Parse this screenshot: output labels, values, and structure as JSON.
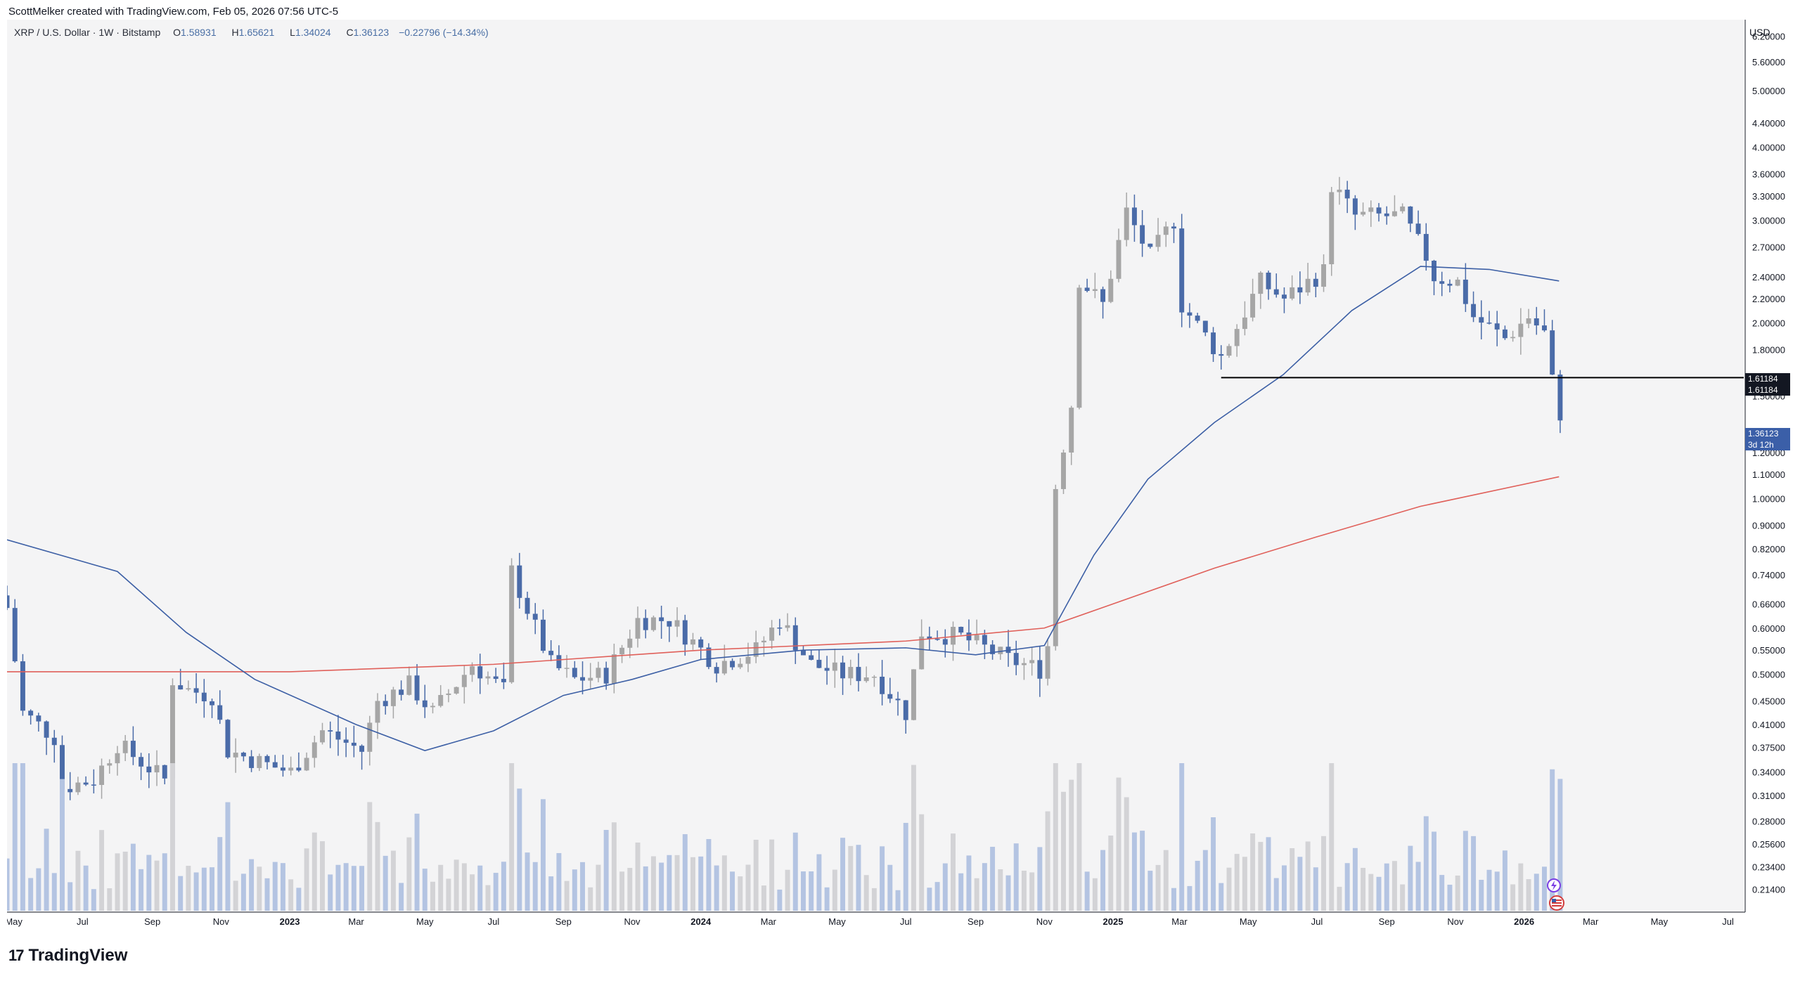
{
  "credit": "ScottMelker created with TradingView.com, Feb 05, 2026 07:56 UTC-5",
  "legend": {
    "symbol": "XRP / U.S. Dollar · 1W · Bitstamp",
    "open_label": "O",
    "open": "1.58931",
    "high_label": "H",
    "high": "1.65621",
    "low_label": "L",
    "low": "1.34024",
    "close_label": "C",
    "close": "1.36123",
    "change": "−0.22796 (−14.34%)"
  },
  "currency": "USD",
  "price_tags": {
    "support_1": "1.61184",
    "support_2": "1.61184",
    "last_price": "1.36123",
    "countdown": "3d 12h"
  },
  "brand": "TradingView",
  "colors": {
    "background": "#f4f4f5",
    "up_candle": "#a6a6a6",
    "down_candle": "#4a6ba8",
    "ma_short": "#3c5fa5",
    "ma_long": "#e0605a",
    "support_line": "#000000",
    "volume_up": "#d3d3d6",
    "volume_down": "#b4c4e2"
  },
  "chart_data": {
    "type": "candlestick",
    "scale": "log",
    "ylim": [
      0.2,
      6.4
    ],
    "y_ticks": [
      "6.20000",
      "5.60000",
      "5.00000",
      "4.40000",
      "4.00000",
      "3.60000",
      "3.30000",
      "3.00000",
      "2.70000",
      "2.40000",
      "2.20000",
      "2.00000",
      "1.80000",
      "1.50000",
      "1.20000",
      "1.10000",
      "1.00000",
      "0.90000",
      "0.82000",
      "0.74000",
      "0.66000",
      "0.60000",
      "0.55000",
      "0.50000",
      "0.45000",
      "0.41000",
      "0.37500",
      "0.34000",
      "0.31000",
      "0.28000",
      "0.25600",
      "0.23400",
      "0.21400"
    ],
    "x_ticks": [
      {
        "label": "May",
        "bold": false,
        "x": "2022-05-01"
      },
      {
        "label": "Jul",
        "bold": false,
        "x": "2022-07-01"
      },
      {
        "label": "Sep",
        "bold": false,
        "x": "2022-09-01"
      },
      {
        "label": "Nov",
        "bold": false,
        "x": "2022-11-01"
      },
      {
        "label": "2023",
        "bold": true,
        "x": "2023-01-01"
      },
      {
        "label": "Mar",
        "bold": false,
        "x": "2023-03-01"
      },
      {
        "label": "May",
        "bold": false,
        "x": "2023-05-01"
      },
      {
        "label": "Jul",
        "bold": false,
        "x": "2023-07-01"
      },
      {
        "label": "Sep",
        "bold": false,
        "x": "2023-09-01"
      },
      {
        "label": "Nov",
        "bold": false,
        "x": "2023-11-01"
      },
      {
        "label": "2024",
        "bold": true,
        "x": "2024-01-01"
      },
      {
        "label": "Mar",
        "bold": false,
        "x": "2024-03-01"
      },
      {
        "label": "May",
        "bold": false,
        "x": "2024-05-01"
      },
      {
        "label": "Jul",
        "bold": false,
        "x": "2024-07-01"
      },
      {
        "label": "Sep",
        "bold": false,
        "x": "2024-09-01"
      },
      {
        "label": "Nov",
        "bold": false,
        "x": "2024-11-01"
      },
      {
        "label": "2025",
        "bold": true,
        "x": "2025-01-01"
      },
      {
        "label": "Mar",
        "bold": false,
        "x": "2025-03-01"
      },
      {
        "label": "May",
        "bold": false,
        "x": "2025-05-01"
      },
      {
        "label": "Jul",
        "bold": false,
        "x": "2025-07-01"
      },
      {
        "label": "Sep",
        "bold": false,
        "x": "2025-09-01"
      },
      {
        "label": "Nov",
        "bold": false,
        "x": "2025-11-01"
      },
      {
        "label": "2026",
        "bold": true,
        "x": "2026-01-01"
      },
      {
        "label": "Mar",
        "bold": false,
        "x": "2026-03-01"
      },
      {
        "label": "May",
        "bold": false,
        "x": "2026-05-01"
      },
      {
        "label": "Jul",
        "bold": false,
        "x": "2026-07-01"
      }
    ],
    "close_anchors": [
      [
        "2022-04-25",
        0.65
      ],
      [
        "2022-05-09",
        0.43
      ],
      [
        "2022-06-06",
        0.39
      ],
      [
        "2022-06-13",
        0.32
      ],
      [
        "2022-07-11",
        0.33
      ],
      [
        "2022-08-01",
        0.38
      ],
      [
        "2022-09-12",
        0.33
      ],
      [
        "2022-09-19",
        0.49
      ],
      [
        "2022-10-03",
        0.47
      ],
      [
        "2022-10-24",
        0.46
      ],
      [
        "2022-11-07",
        0.37
      ],
      [
        "2022-12-12",
        0.35
      ],
      [
        "2023-01-02",
        0.34
      ],
      [
        "2023-01-30",
        0.4
      ],
      [
        "2023-03-06",
        0.37
      ],
      [
        "2023-03-20",
        0.45
      ],
      [
        "2023-04-17",
        0.48
      ],
      [
        "2023-05-08",
        0.43
      ],
      [
        "2023-06-12",
        0.52
      ],
      [
        "2023-07-10",
        0.47
      ],
      [
        "2023-07-17",
        0.75
      ],
      [
        "2023-08-07",
        0.6
      ],
      [
        "2023-08-21",
        0.52
      ],
      [
        "2023-09-11",
        0.49
      ],
      [
        "2023-10-09",
        0.5
      ],
      [
        "2023-11-06",
        0.62
      ],
      [
        "2023-12-04",
        0.62
      ],
      [
        "2024-01-15",
        0.52
      ],
      [
        "2024-02-19",
        0.55
      ],
      [
        "2024-03-11",
        0.62
      ],
      [
        "2024-04-08",
        0.52
      ],
      [
        "2024-05-06",
        0.5
      ],
      [
        "2024-06-03",
        0.5
      ],
      [
        "2024-07-01",
        0.43
      ],
      [
        "2024-07-15",
        0.59
      ],
      [
        "2024-08-19",
        0.58
      ],
      [
        "2024-09-30",
        0.53
      ],
      [
        "2024-10-28",
        0.51
      ],
      [
        "2024-11-04",
        0.56
      ],
      [
        "2024-11-11",
        1.05
      ],
      [
        "2024-11-25",
        1.45
      ],
      [
        "2024-12-02",
        2.38
      ],
      [
        "2024-12-23",
        2.15
      ],
      [
        "2025-01-13",
        3.1
      ],
      [
        "2025-02-03",
        2.6
      ],
      [
        "2025-02-24",
        3.0
      ],
      [
        "2025-03-03",
        2.15
      ],
      [
        "2025-04-07",
        1.75
      ],
      [
        "2025-05-12",
        2.35
      ],
      [
        "2025-06-02",
        2.2
      ],
      [
        "2025-07-07",
        2.45
      ],
      [
        "2025-07-14",
        3.45
      ],
      [
        "2025-08-04",
        3.05
      ],
      [
        "2025-09-15",
        3.05
      ],
      [
        "2025-10-06",
        2.6
      ],
      [
        "2025-10-13",
        2.4
      ],
      [
        "2025-11-03",
        2.35
      ],
      [
        "2025-11-17",
        2.05
      ],
      [
        "2025-12-15",
        1.88
      ],
      [
        "2026-01-05",
        2.05
      ],
      [
        "2026-01-19",
        1.92
      ],
      [
        "2026-01-26",
        1.58931
      ],
      [
        "2026-02-02",
        1.36123
      ]
    ],
    "sma_50w": {
      "name": "",
      "values": [
        [
          "2022-04-25",
          0.85
        ],
        [
          "2022-08-01",
          0.75
        ],
        [
          "2022-10-01",
          0.59
        ],
        [
          "2022-12-01",
          0.49
        ],
        [
          "2023-03-01",
          0.41
        ],
        [
          "2023-05-01",
          0.37
        ],
        [
          "2023-07-01",
          0.4
        ],
        [
          "2023-09-01",
          0.46
        ],
        [
          "2023-11-01",
          0.49
        ],
        [
          "2024-01-01",
          0.53
        ],
        [
          "2024-04-01",
          0.55
        ],
        [
          "2024-07-01",
          0.555
        ],
        [
          "2024-09-01",
          0.54
        ],
        [
          "2024-11-01",
          0.56
        ],
        [
          "2024-12-15",
          0.8
        ],
        [
          "2025-02-01",
          1.08
        ],
        [
          "2025-04-01",
          1.35
        ],
        [
          "2025-06-01",
          1.63
        ],
        [
          "2025-08-01",
          2.1
        ],
        [
          "2025-10-01",
          2.5
        ],
        [
          "2025-12-01",
          2.47
        ],
        [
          "2026-02-01",
          2.36
        ]
      ]
    },
    "sma_200w": {
      "name": "",
      "values": [
        [
          "2022-04-25",
          0.505
        ],
        [
          "2023-01-01",
          0.505
        ],
        [
          "2023-07-01",
          0.52
        ],
        [
          "2024-01-01",
          0.55
        ],
        [
          "2024-07-01",
          0.57
        ],
        [
          "2024-11-01",
          0.6
        ],
        [
          "2025-01-01",
          0.66
        ],
        [
          "2025-04-01",
          0.76
        ],
        [
          "2025-07-01",
          0.86
        ],
        [
          "2025-10-01",
          0.97
        ],
        [
          "2026-02-01",
          1.09
        ]
      ]
    },
    "support_level": {
      "value": 1.61184,
      "from": "2025-04-07",
      "to": "2026-07-15"
    },
    "x_range": [
      "2022-04-25",
      "2026-07-15"
    ]
  }
}
